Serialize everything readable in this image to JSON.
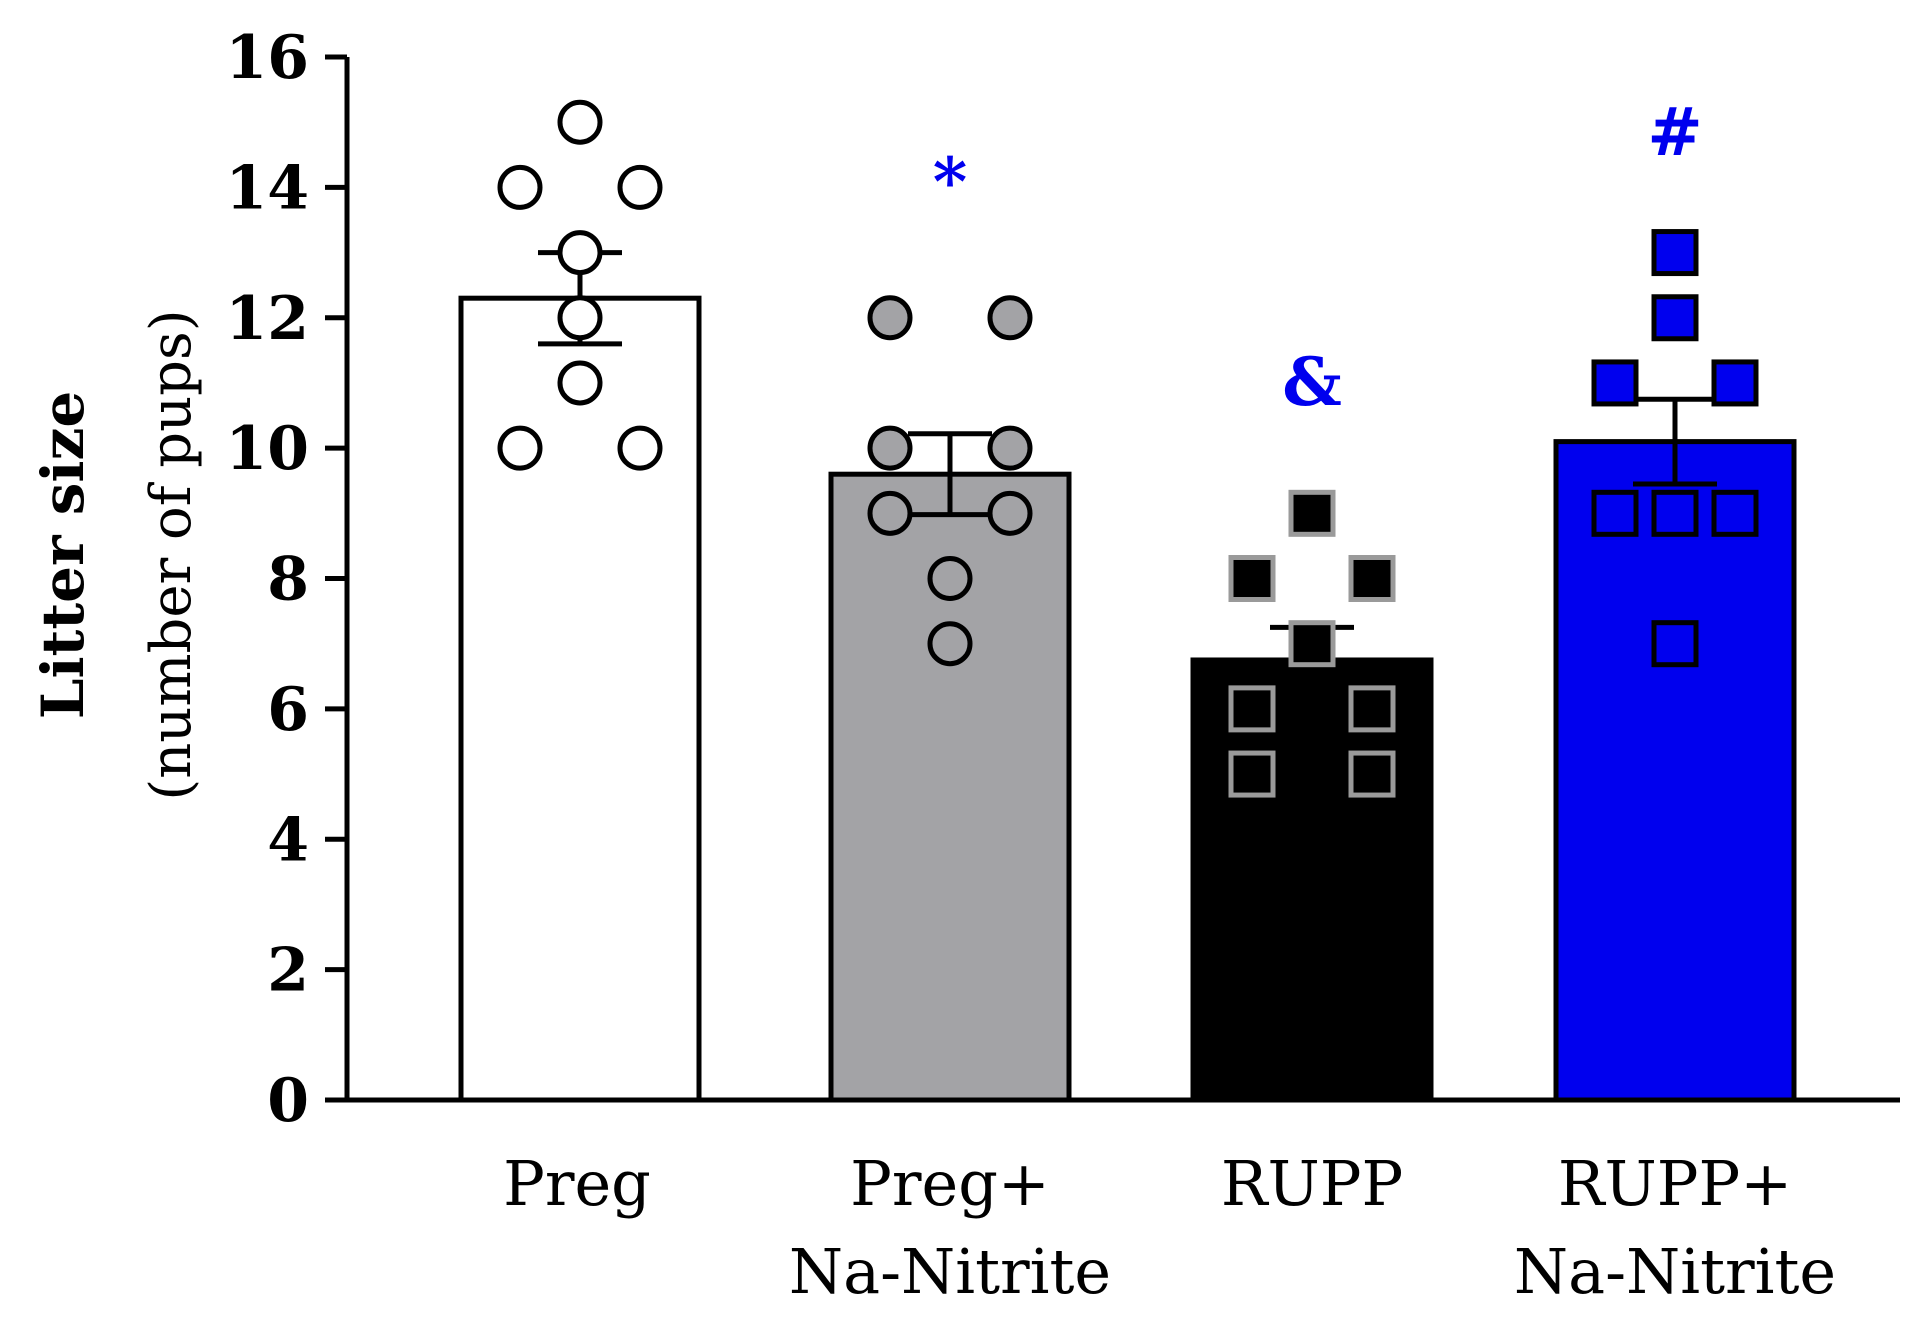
{
  "chart_data": {
    "type": "bar",
    "ylabel": "Litter size",
    "ylabel_sub": "(number of pups)",
    "ylim": [
      0,
      16
    ],
    "yticks": [
      0,
      2,
      4,
      6,
      8,
      10,
      12,
      14,
      16
    ],
    "categories": [
      {
        "lines": [
          "Preg"
        ]
      },
      {
        "lines": [
          "Preg+",
          "Na-Nitrite"
        ]
      },
      {
        "lines": [
          "RUPP"
        ]
      },
      {
        "lines": [
          "RUPP+",
          "Na-Nitrite"
        ]
      }
    ],
    "values": [
      12.3,
      9.6,
      6.75,
      10.1
    ],
    "sem": [
      0.7,
      0.62,
      0.5,
      0.65
    ],
    "points": [
      [
        10,
        10,
        11,
        12,
        13,
        14,
        14,
        15
      ],
      [
        7,
        8,
        9,
        9,
        10,
        10,
        12,
        12
      ],
      [
        5,
        5,
        6,
        6,
        7,
        8,
        8,
        9
      ],
      [
        7,
        9,
        9,
        9,
        11,
        11,
        12,
        13
      ]
    ],
    "annotations": [
      "",
      "*",
      "&",
      "#"
    ],
    "colors": {
      "bars": [
        "#ffffff",
        "#a3a3a6",
        "#000000",
        "#0000ee"
      ],
      "point_fill": [
        "#ffffff",
        "#a3a3a6",
        "#000000",
        "#0000ee"
      ],
      "annotation": "#0000ee"
    }
  }
}
